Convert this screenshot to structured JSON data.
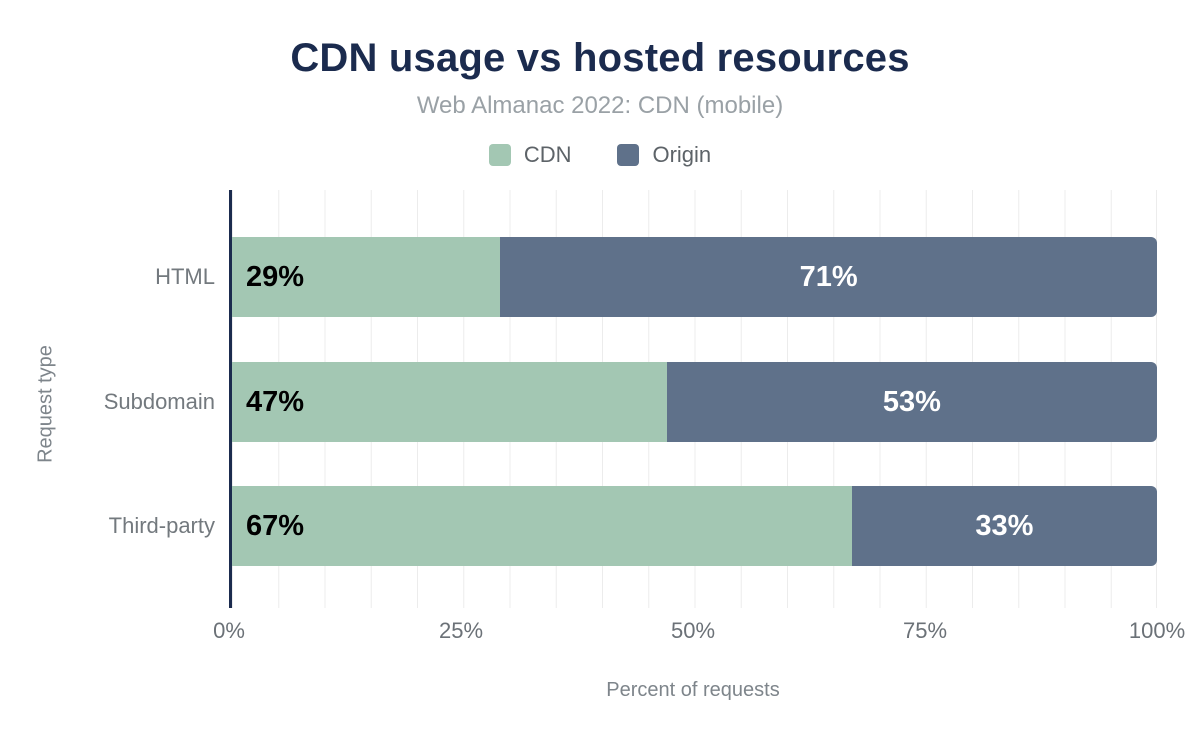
{
  "chart_data": {
    "type": "bar",
    "orientation": "horizontal",
    "stacked": true,
    "title": "CDN usage vs hosted resources",
    "subtitle": "Web Almanac 2022: CDN (mobile)",
    "categories": [
      "HTML",
      "Subdomain",
      "Third-party"
    ],
    "series": [
      {
        "name": "CDN",
        "values": [
          29,
          47,
          67
        ],
        "color": "#a3c7b3",
        "label_color": "#000000"
      },
      {
        "name": "Origin",
        "values": [
          71,
          53,
          33
        ],
        "color": "#5f718a",
        "label_color": "#ffffff"
      }
    ],
    "data_labels": {
      "CDN": [
        "29%",
        "47%",
        "67%"
      ],
      "Origin": [
        "71%",
        "53%",
        "33%"
      ]
    },
    "xlabel": "Percent of requests",
    "ylabel": "Request type",
    "xlim": [
      0,
      100
    ],
    "xticks": [
      {
        "label": "0%",
        "pos": 0
      },
      {
        "label": "25%",
        "pos": 25
      },
      {
        "label": "50%",
        "pos": 50
      },
      {
        "label": "75%",
        "pos": 75
      },
      {
        "label": "100%",
        "pos": 100
      }
    ],
    "grid": {
      "show": true,
      "minor_step_percent": 5,
      "color": "#ececec"
    },
    "legend_position": "top",
    "colors": {
      "title": "#1b2b4e",
      "axis_line": "#1b2b4e",
      "subtitle_text": "#9aa1a6",
      "tick_text": "#6b7177"
    }
  }
}
